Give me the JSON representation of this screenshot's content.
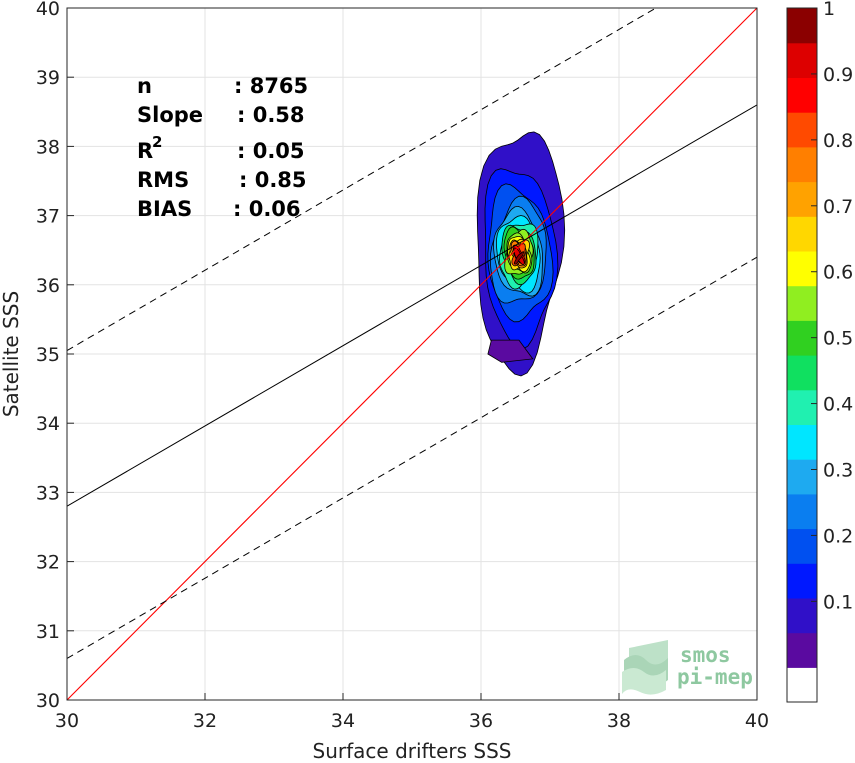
{
  "chart_data": {
    "type": "heatmap",
    "subtype": "scatter-density-contour",
    "xlabel": "Surface drifters SSS",
    "ylabel": "Satellite SSS",
    "xlim": [
      30,
      40
    ],
    "ylim": [
      30,
      40
    ],
    "xticks": [
      30,
      32,
      34,
      36,
      38,
      40
    ],
    "yticks": [
      30,
      31,
      32,
      33,
      34,
      35,
      36,
      37,
      38,
      39,
      40
    ],
    "grid": true,
    "stats": [
      {
        "key": "n",
        "value": ": 8765"
      },
      {
        "key": "Slope",
        "value": ": 0.58"
      },
      {
        "key": "R",
        "sup": "2",
        "value": ": 0.05"
      },
      {
        "key": "RMS",
        "value": ": 0.85"
      },
      {
        "key": "BIAS",
        "value": ": 0.06"
      }
    ],
    "lines": {
      "identity": {
        "color": "#ff0000",
        "points": [
          [
            30,
            30
          ],
          [
            40,
            40
          ]
        ]
      },
      "regression": {
        "color": "#000000",
        "intercept": 32.8,
        "slope": 0.58
      },
      "bounds": {
        "style": "dashed",
        "color": "#000000",
        "slope": 0.58,
        "offsets": [
          2.25,
          -2.2
        ]
      }
    },
    "density_center": [
      36.55,
      36.55
    ],
    "density_levels": [
      {
        "level": 0.05,
        "rx": 0.62,
        "ry": 1.72,
        "dy": 0.0
      },
      {
        "level": 0.1,
        "rx": 0.52,
        "ry": 1.27,
        "dy": 0.1
      },
      {
        "level": 0.15,
        "rx": 0.46,
        "ry": 0.95,
        "dy": 0.1
      },
      {
        "level": 0.2,
        "rx": 0.4,
        "ry": 0.75,
        "dy": 0.1
      },
      {
        "level": 0.25,
        "rx": 0.35,
        "ry": 0.62,
        "dy": 0.1
      },
      {
        "level": 0.3,
        "rx": 0.31,
        "ry": 0.53,
        "dy": 0.1
      },
      {
        "level": 0.35,
        "rx": 0.27,
        "ry": 0.46,
        "dy": 0.1
      },
      {
        "level": 0.4,
        "rx": 0.24,
        "ry": 0.41,
        "dy": 0.1
      },
      {
        "level": 0.45,
        "rx": 0.21,
        "ry": 0.36,
        "dy": 0.1
      },
      {
        "level": 0.5,
        "rx": 0.19,
        "ry": 0.32,
        "dy": 0.1
      },
      {
        "level": 0.55,
        "rx": 0.17,
        "ry": 0.28,
        "dy": 0.1
      },
      {
        "level": 0.6,
        "rx": 0.15,
        "ry": 0.25,
        "dy": 0.1
      },
      {
        "level": 0.65,
        "rx": 0.13,
        "ry": 0.22,
        "dy": 0.1
      },
      {
        "level": 0.7,
        "rx": 0.11,
        "ry": 0.2,
        "dy": 0.1
      },
      {
        "level": 0.75,
        "rx": 0.09,
        "ry": 0.18,
        "dy": 0.1
      },
      {
        "level": 0.8,
        "rx": 0.075,
        "ry": 0.16,
        "dy": 0.12
      },
      {
        "level": 0.85,
        "rx": 0.06,
        "ry": 0.14,
        "dy": 0.12
      },
      {
        "level": 0.9,
        "rx": 0.045,
        "ry": 0.12,
        "dy": 0.14
      },
      {
        "level": 0.95,
        "rx": 0.03,
        "ry": 0.09,
        "dy": 0.16
      }
    ],
    "colorbar": {
      "ticks": [
        "0.1",
        "0.2",
        "0.3",
        "0.4",
        "0.5",
        "0.6",
        "0.7",
        "0.8",
        "0.9",
        "1"
      ],
      "tick_values": [
        0.1,
        0.2,
        0.3,
        0.4,
        0.5,
        0.6,
        0.7,
        0.8,
        0.9,
        1.0
      ],
      "colors": [
        "#ffffff",
        "#5a0aa0",
        "#3010c8",
        "#0018ff",
        "#0050f0",
        "#0a7ef0",
        "#1eaaf0",
        "#00e6ff",
        "#20f0b0",
        "#10e060",
        "#30d020",
        "#90ee20",
        "#ffff00",
        "#ffd700",
        "#ffa200",
        "#ff7f00",
        "#ff4a00",
        "#ff0000",
        "#dd0000",
        "#8b0000"
      ]
    }
  },
  "logo": {
    "line1": "smos",
    "line2": "pi-mep",
    "color": "#8ec8a0"
  }
}
